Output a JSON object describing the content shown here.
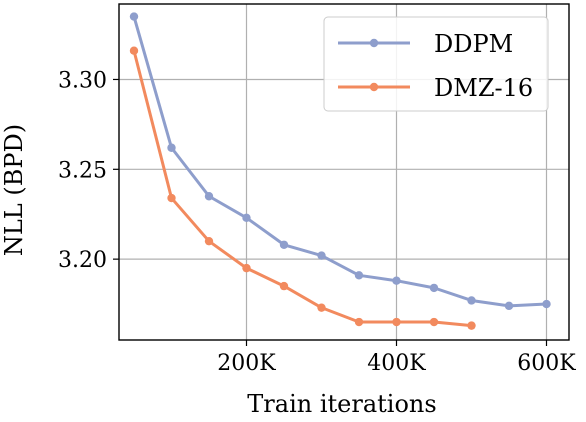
{
  "chart_data": {
    "type": "line",
    "title": "",
    "xlabel": "Train iterations",
    "ylabel": "NLL (BPD)",
    "xlim": [
      30000,
      630000
    ],
    "ylim": [
      3.155,
      3.342
    ],
    "xticks": [
      200000,
      400000,
      600000
    ],
    "xtick_labels": [
      "200K",
      "400K",
      "600K"
    ],
    "yticks": [
      3.2,
      3.25,
      3.3
    ],
    "ytick_labels": [
      "3.20",
      "3.25",
      "3.30"
    ],
    "grid": true,
    "legend_position": "top-right",
    "series": [
      {
        "name": "DDPM",
        "color": "#8E9ECC",
        "x": [
          50000,
          100000,
          150000,
          200000,
          250000,
          300000,
          350000,
          400000,
          450000,
          500000,
          550000,
          600000
        ],
        "y": [
          3.335,
          3.262,
          3.235,
          3.223,
          3.208,
          3.202,
          3.191,
          3.188,
          3.184,
          3.177,
          3.174,
          3.175
        ]
      },
      {
        "name": "DMZ-16",
        "color": "#F28A5E",
        "x": [
          50000,
          100000,
          150000,
          200000,
          250000,
          300000,
          350000,
          400000,
          450000,
          500000
        ],
        "y": [
          3.316,
          3.234,
          3.21,
          3.195,
          3.185,
          3.173,
          3.165,
          3.165,
          3.165,
          3.163
        ]
      }
    ]
  }
}
